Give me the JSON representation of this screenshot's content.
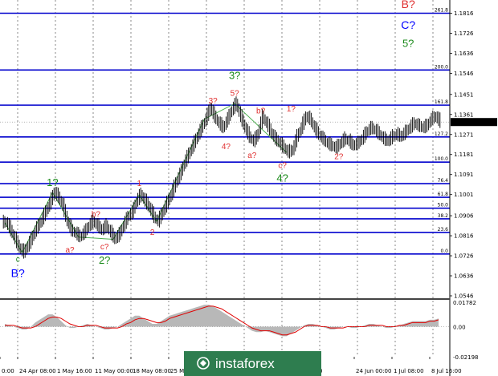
{
  "chart_data": {
    "type": "line",
    "price_chart": {
      "y_axis_labels": [
        "1.1816",
        "1.1726",
        "1.1636",
        "1.1546",
        "1.1451",
        "1.1361",
        "1.1271",
        "1.1181",
        "1.1091",
        "1.1001",
        "1.0906",
        "1.0816",
        "1.0726",
        "1.0636",
        "1.0546"
      ],
      "ylim": [
        1.0546,
        1.1861
      ],
      "current_price": "1.1327",
      "fibonacci_levels": [
        {
          "label": "261.8",
          "price": 1.1816
        },
        {
          "label": "200.0",
          "price": 1.1561
        },
        {
          "label": "161.8",
          "price": 1.1403
        },
        {
          "label": "127.2",
          "price": 1.126
        },
        {
          "label": "100.0",
          "price": 1.1147
        },
        {
          "label": "76.4",
          "price": 1.105
        },
        {
          "label": "61.8",
          "price": 1.0989
        },
        {
          "label": "50.0",
          "price": 1.094
        },
        {
          "label": "38.2",
          "price": 1.0892
        },
        {
          "label": "23.6",
          "price": 1.0831
        },
        {
          "label": "0.0",
          "price": 1.0734
        }
      ],
      "series": [
        {
          "x": [
            0,
            1,
            2,
            3,
            4,
            5,
            6,
            7,
            8,
            9,
            10,
            11,
            12,
            13,
            14,
            15,
            16,
            17,
            18,
            19,
            20,
            21,
            22,
            23,
            24,
            25,
            26,
            27,
            28,
            29,
            30,
            31,
            32,
            33,
            34,
            35,
            36,
            37,
            38,
            39,
            40,
            41,
            42,
            43,
            44,
            45,
            46,
            47,
            48,
            49,
            50,
            51,
            52,
            53,
            54,
            55,
            56,
            57,
            58,
            59,
            60,
            61,
            62,
            63,
            64,
            65,
            66,
            67,
            68,
            69,
            70,
            71,
            72,
            73,
            74,
            75,
            76,
            77,
            78,
            79,
            80,
            81,
            82,
            83,
            84,
            85,
            86,
            87,
            88,
            89,
            90,
            91,
            92,
            93,
            94,
            95,
            96,
            97,
            98,
            99,
            100
          ],
          "values": [
            1.0875,
            1.084,
            1.08,
            1.076,
            1.074,
            1.077,
            1.081,
            1.085,
            1.088,
            1.092,
            1.096,
            1.101,
            1.099,
            1.095,
            1.088,
            1.084,
            1.0825,
            1.081,
            1.083,
            1.086,
            1.088,
            1.086,
            1.084,
            1.086,
            1.083,
            1.08,
            1.082,
            1.086,
            1.09,
            1.092,
            1.097,
            1.1,
            1.097,
            1.094,
            1.09,
            1.088,
            1.092,
            1.096,
            1.1,
            1.105,
            1.109,
            1.114,
            1.118,
            1.122,
            1.126,
            1.13,
            1.134,
            1.139,
            1.135,
            1.132,
            1.13,
            1.134,
            1.138,
            1.141,
            1.135,
            1.13,
            1.126,
            1.124,
            1.127,
            1.135,
            1.132,
            1.128,
            1.125,
            1.123,
            1.121,
            1.119,
            1.12,
            1.126,
            1.13,
            1.135,
            1.134,
            1.13,
            1.127,
            1.125,
            1.123,
            1.122,
            1.121,
            1.123,
            1.125,
            1.124,
            1.122,
            1.123,
            1.125,
            1.128,
            1.13,
            1.129,
            1.127,
            1.125,
            1.124,
            1.126,
            1.127,
            1.126,
            1.128,
            1.13,
            1.132,
            1.131,
            1.13,
            1.131,
            1.134,
            1.135,
            1.1327
          ]
        }
      ],
      "wave_lines": [
        {
          "points": [
            [
              0,
              1.0875
            ],
            [
              4,
              1.074
            ],
            [
              11,
              1.101
            ],
            [
              17,
              1.081
            ],
            [
              25,
              1.08
            ],
            [
              31,
              1.1
            ],
            [
              35,
              1.088
            ],
            [
              46,
              1.134
            ],
            [
              53,
              1.141
            ],
            [
              65,
              1.119
            ]
          ]
        }
      ],
      "wave_labels": [
        {
          "text": "c",
          "color": "#1a8a1a",
          "x": 3,
          "price": 1.07,
          "size": 10
        },
        {
          "text": "B?",
          "color": "#0000ff",
          "x": 3,
          "price": 1.063,
          "size": 14
        },
        {
          "text": "1?",
          "color": "#1a8a1a",
          "x": 11,
          "price": 1.104,
          "size": 13
        },
        {
          "text": "a?",
          "color": "#e03030",
          "x": 15,
          "price": 1.074,
          "size": 10
        },
        {
          "text": "b?",
          "color": "#e03030",
          "x": 21,
          "price": 1.09,
          "size": 10
        },
        {
          "text": "c?",
          "color": "#e03030",
          "x": 23,
          "price": 1.0755,
          "size": 10
        },
        {
          "text": "2?",
          "color": "#1a8a1a",
          "x": 23,
          "price": 1.069,
          "size": 13
        },
        {
          "text": "1",
          "color": "#e03030",
          "x": 31,
          "price": 1.104,
          "size": 10
        },
        {
          "text": "2",
          "color": "#e03030",
          "x": 34,
          "price": 1.082,
          "size": 10
        },
        {
          "text": "3?",
          "color": "#e03030",
          "x": 48,
          "price": 1.141,
          "size": 10
        },
        {
          "text": "3?",
          "color": "#1a8a1a",
          "x": 53,
          "price": 1.152,
          "size": 13
        },
        {
          "text": "5?",
          "color": "#e03030",
          "x": 53,
          "price": 1.1445,
          "size": 10
        },
        {
          "text": "4?",
          "color": "#e03030",
          "x": 51,
          "price": 1.1205,
          "size": 10
        },
        {
          "text": "b?",
          "color": "#e03030",
          "x": 59,
          "price": 1.1365,
          "size": 10
        },
        {
          "text": "a?",
          "color": "#e03030",
          "x": 57,
          "price": 1.1165,
          "size": 10
        },
        {
          "text": "c?",
          "color": "#e03030",
          "x": 64,
          "price": 1.112,
          "size": 10
        },
        {
          "text": "4?",
          "color": "#1a8a1a",
          "x": 64,
          "price": 1.106,
          "size": 13
        },
        {
          "text": "1?",
          "color": "#e03030",
          "x": 66,
          "price": 1.1375,
          "size": 10
        },
        {
          "text": "2?",
          "color": "#e03030",
          "x": 77,
          "price": 1.116,
          "size": 10
        },
        {
          "text": "B?",
          "color": "#e03030",
          "x": 93,
          "price": 1.184,
          "size": 14
        },
        {
          "text": "C?",
          "color": "#0000ff",
          "x": 93,
          "price": 1.1745,
          "size": 14
        },
        {
          "text": "5?",
          "color": "#1a8a1a",
          "x": 93,
          "price": 1.1665,
          "size": 13
        }
      ]
    },
    "oscillator": {
      "y_axis_labels": [
        "0.01782",
        "0.00",
        "-0.02198"
      ],
      "ylim": [
        -0.02198,
        0.01782
      ],
      "histogram": [
        0.002,
        0.001,
        0.0,
        -0.001,
        -0.002,
        -0.002,
        0.0,
        0.003,
        0.005,
        0.007,
        0.009,
        0.009,
        0.007,
        0.004,
        0.001,
        -0.001,
        -0.001,
        0.0,
        0.001,
        0.002,
        0.001,
        0.0,
        -0.001,
        -0.002,
        -0.002,
        -0.001,
        0.0,
        0.002,
        0.004,
        0.006,
        0.008,
        0.008,
        0.006,
        0.004,
        0.002,
        0.002,
        0.004,
        0.006,
        0.008,
        0.009,
        0.01,
        0.011,
        0.012,
        0.013,
        0.014,
        0.015,
        0.016,
        0.016,
        0.015,
        0.013,
        0.011,
        0.009,
        0.007,
        0.005,
        0.003,
        0.001,
        -0.001,
        -0.003,
        -0.004,
        -0.004,
        -0.003,
        -0.004,
        -0.005,
        -0.006,
        -0.007,
        -0.007,
        -0.005,
        -0.003,
        -0.001,
        0.001,
        0.002,
        0.002,
        0.001,
        0.0,
        -0.001,
        -0.002,
        -0.002,
        -0.001,
        0.0,
        0.0,
        -0.001,
        -0.001,
        0.0,
        0.001,
        0.002,
        0.002,
        0.001,
        0.0,
        -0.001,
        -0.001,
        0.0,
        0.001,
        0.002,
        0.003,
        0.004,
        0.004,
        0.004,
        0.004,
        0.005,
        0.005,
        0.006
      ],
      "signal": [
        0.001,
        0.001,
        0.001,
        0.0,
        -0.001,
        -0.001,
        -0.001,
        0.0,
        0.002,
        0.004,
        0.006,
        0.007,
        0.007,
        0.006,
        0.004,
        0.002,
        0.001,
        0.0,
        0.0,
        0.001,
        0.001,
        0.001,
        0.0,
        -0.001,
        -0.001,
        -0.001,
        -0.001,
        0.0,
        0.002,
        0.003,
        0.005,
        0.006,
        0.006,
        0.005,
        0.004,
        0.003,
        0.003,
        0.004,
        0.006,
        0.007,
        0.008,
        0.009,
        0.01,
        0.011,
        0.012,
        0.013,
        0.014,
        0.015,
        0.015,
        0.014,
        0.013,
        0.011,
        0.009,
        0.007,
        0.005,
        0.003,
        0.001,
        -0.001,
        -0.002,
        -0.003,
        -0.003,
        -0.003,
        -0.004,
        -0.005,
        -0.006,
        -0.006,
        -0.005,
        -0.004,
        -0.002,
        0.0,
        0.001,
        0.001,
        0.001,
        0.0,
        0.0,
        -0.001,
        -0.001,
        -0.001,
        -0.001,
        0.0,
        0.0,
        0.0,
        0.0,
        0.0,
        0.001,
        0.001,
        0.001,
        0.001,
        0.0,
        0.0,
        0.0,
        0.001,
        0.001,
        0.002,
        0.003,
        0.003,
        0.003,
        0.003,
        0.004,
        0.004,
        0.005
      ]
    },
    "x_axis_labels": [
      "0:00",
      "24 Apr 08:00",
      "1 May 16:00",
      "11 May 00:00",
      "18 May 08:00",
      "25 M",
      "0",
      "24 Jun 00:00",
      "1 Jul 08:00",
      "8 Jul 16:00"
    ],
    "grid": true
  },
  "logo": {
    "text": "instaforex",
    "bg_color": "#2e7d4f"
  },
  "colors": {
    "fibo_line": "#0000cd",
    "wave_line": "#4caf50",
    "candles": "#000000",
    "histogram": "#b8b8b8",
    "signal": "#e00000"
  }
}
